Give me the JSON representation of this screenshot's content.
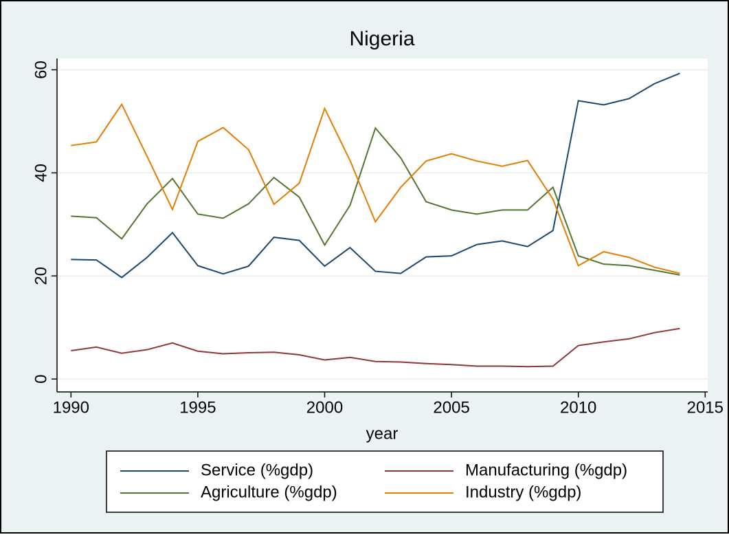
{
  "chart_data": {
    "type": "line",
    "title": "Nigeria",
    "x_label": "year",
    "x": [
      1990,
      1991,
      1992,
      1993,
      1994,
      1995,
      1996,
      1997,
      1998,
      1999,
      2000,
      2001,
      2002,
      2003,
      2004,
      2005,
      2006,
      2007,
      2008,
      2009,
      2010,
      2011,
      2012,
      2013,
      2014
    ],
    "series": [
      {
        "name": "Service (%gdp)",
        "color": "#1a476f",
        "values": [
          23.2,
          23.1,
          19.7,
          23.6,
          28.4,
          22,
          20.4,
          21.9,
          27.5,
          26.9,
          21.9,
          25.5,
          20.9,
          20.5,
          23.7,
          23.9,
          26.1,
          26.8,
          25.7,
          28.8,
          54,
          53.2,
          54.4,
          57.3,
          59.3
        ]
      },
      {
        "name": "Manufacturing (%gdp)",
        "color": "#90353b",
        "values": [
          5.5,
          6.2,
          5.0,
          5.7,
          7.0,
          5.4,
          4.9,
          5.1,
          5.2,
          4.7,
          3.7,
          4.2,
          3.4,
          3.3,
          3.0,
          2.8,
          2.5,
          2.5,
          2.4,
          2.5,
          6.5,
          7.2,
          7.8,
          9.0,
          9.8
        ]
      },
      {
        "name": "Agriculture (%gdp)",
        "color": "#55752f",
        "values": [
          31.6,
          31.3,
          27.2,
          34,
          38.9,
          32,
          31.2,
          34,
          39.1,
          35.3,
          26,
          33.7,
          48.7,
          42.9,
          34.4,
          32.8,
          32,
          32.8,
          32.8,
          37.2,
          23.9,
          22.3,
          22,
          21.1,
          20.2
        ]
      },
      {
        "name": "Industry (%gdp)",
        "color": "#e37e00",
        "values": [
          45.3,
          46,
          53.3,
          43.2,
          32.9,
          46.1,
          48.8,
          44.5,
          33.9,
          38,
          52.5,
          42.4,
          30.5,
          37.2,
          42.3,
          43.7,
          42.3,
          41.3,
          42.4,
          34.9,
          22,
          24.7,
          23.6,
          21.7,
          20.5
        ]
      }
    ],
    "xlim": [
      1989.45,
      2015.1
    ],
    "xticks": [
      1990,
      1995,
      2000,
      2005,
      2010,
      2015
    ],
    "ylim": [
      -2.5,
      62.2
    ],
    "yticks": [
      0,
      20,
      40,
      60
    ],
    "grid": true
  }
}
